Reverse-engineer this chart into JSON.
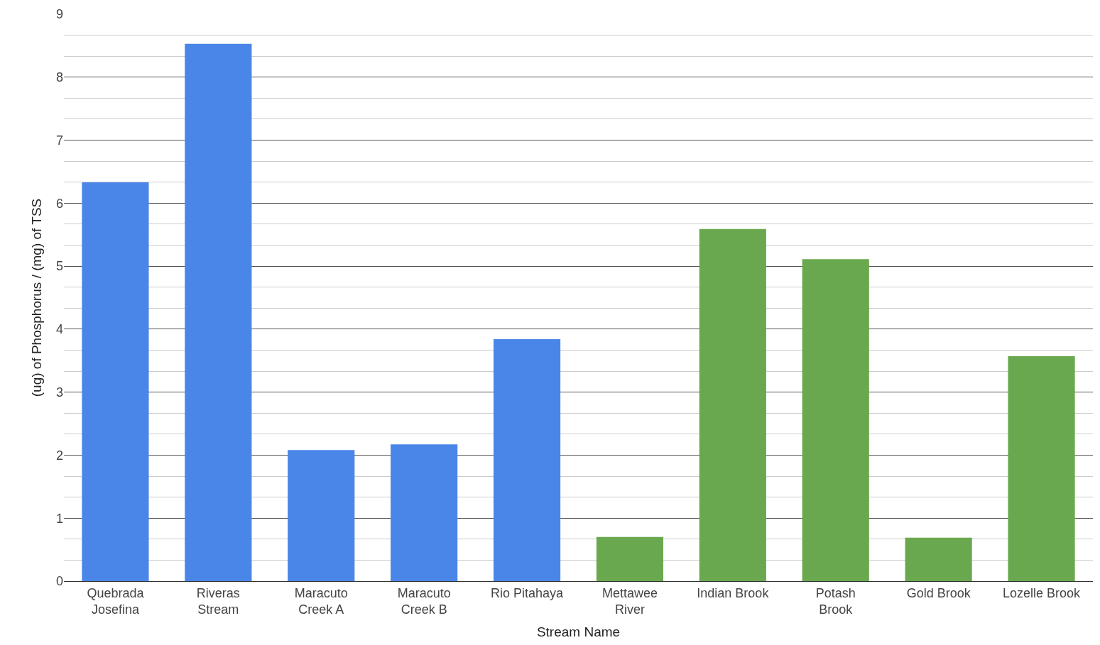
{
  "chart_data": {
    "type": "bar",
    "xlabel": "Stream Name",
    "ylabel": "(ug) of Phosphorus / (mg) of TSS",
    "categories": [
      "Quebrada\nJosefina",
      "Riveras\nStream",
      "Maracuto\nCreek A",
      "Maracuto\nCreek B",
      "Rio Pitahaya",
      "Mettawee\nRiver",
      "Indian Brook",
      "Potash\nBrook",
      "Gold Brook",
      "Lozelle Brook"
    ],
    "values": [
      6.33,
      8.53,
      2.08,
      2.17,
      3.84,
      0.7,
      5.59,
      5.11,
      0.69,
      3.57
    ],
    "colors": [
      "#4a86e8",
      "#4a86e8",
      "#4a86e8",
      "#4a86e8",
      "#4a86e8",
      "#6aa84f",
      "#6aa84f",
      "#6aa84f",
      "#6aa84f",
      "#6aa84f"
    ],
    "ylim": [
      0,
      9
    ],
    "yticks": [
      0,
      1,
      2,
      3,
      4,
      5,
      6,
      7,
      8,
      9
    ],
    "grid": "y"
  }
}
